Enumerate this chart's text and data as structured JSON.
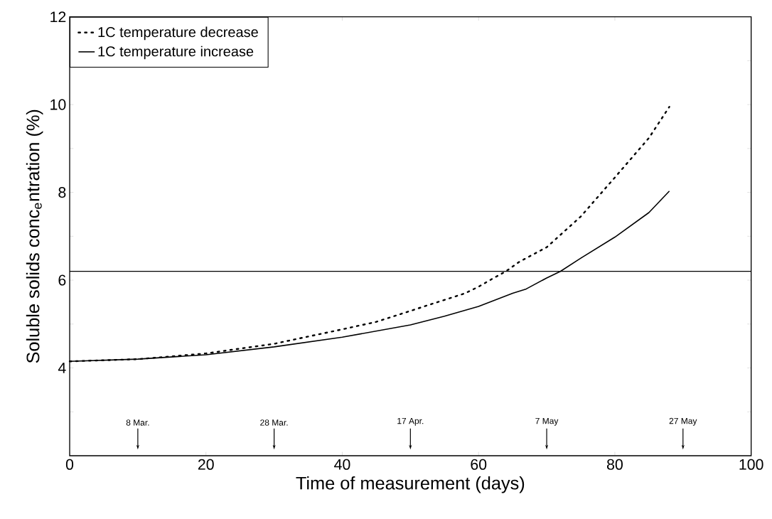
{
  "chart_data": {
    "type": "line",
    "xlabel": "Time of measurement (days)",
    "ylabel": "Soluble solids conc$_{e}$ntration (%)",
    "xlim": [
      0,
      100
    ],
    "xticks": [
      0,
      20,
      40,
      60,
      80,
      100
    ],
    "ylim": [
      2,
      12
    ],
    "yticks": [
      {
        "value": 3,
        "label": null
      },
      4,
      {
        "value": 5,
        "label": null
      },
      6,
      {
        "value": 7,
        "label": null
      },
      8,
      {
        "value": 9,
        "label": null
      },
      10,
      {
        "value": 11,
        "label": null
      },
      12
    ],
    "grid": false,
    "legend": "top left",
    "marker": "none",
    "series": [
      {
        "name": "1C temperature decrease",
        "color": "#000000",
        "line_style": "dotted",
        "x": [
          0,
          10,
          20,
          30,
          40,
          45,
          50,
          55,
          58,
          60,
          62,
          64,
          66,
          70,
          75,
          80,
          85,
          88
        ],
        "values": [
          4.15,
          4.2,
          4.33,
          4.55,
          4.88,
          5.05,
          5.3,
          5.55,
          5.7,
          5.85,
          6.03,
          6.2,
          6.42,
          6.75,
          7.45,
          8.34,
          9.24,
          9.95
        ]
      },
      {
        "name": "1C temperature increase",
        "color": "#000000",
        "line_style": "solid",
        "x": [
          0,
          10,
          20,
          30,
          40,
          50,
          55,
          60,
          65,
          67,
          70,
          72,
          75,
          80,
          85,
          88
        ],
        "values": [
          4.15,
          4.2,
          4.3,
          4.48,
          4.7,
          4.98,
          5.18,
          5.4,
          5.7,
          5.8,
          6.05,
          6.2,
          6.5,
          6.98,
          7.54,
          8.03
        ]
      }
    ],
    "ref_lines": [
      {
        "axis": "y",
        "value": 6.2,
        "color": "#000000"
      },
      {
        "axis": "x",
        "value": 10,
        "label": "8 Mar."
      },
      {
        "axis": "x",
        "value": 30,
        "label": "28 Mar."
      },
      {
        "axis": "x",
        "value": 50,
        "label": "17 Apr."
      },
      {
        "axis": "x",
        "value": 70,
        "label": "7 May"
      },
      {
        "axis": "x",
        "value": 90,
        "label": "27 May"
      }
    ]
  }
}
